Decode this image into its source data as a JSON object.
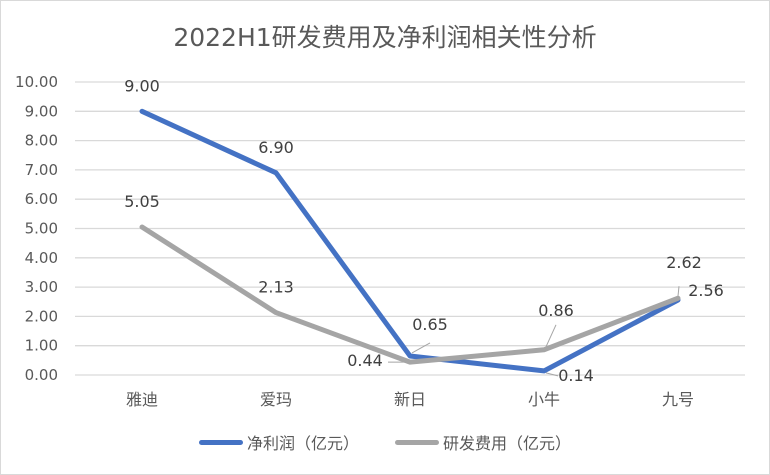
{
  "chart_data": {
    "type": "line",
    "title": "2022H1研发费用及净利润相关性分析",
    "categories": [
      "雅迪",
      "爱玛",
      "新日",
      "小牛",
      "九号"
    ],
    "series": [
      {
        "name": "净利润（亿元）",
        "values": [
          9.0,
          6.9,
          0.65,
          0.14,
          2.56
        ],
        "color": "#4472C4",
        "labels": [
          "9.00",
          "6.90",
          "0.65",
          "0.14",
          "2.56"
        ]
      },
      {
        "name": "研发费用（亿元）",
        "values": [
          5.05,
          2.13,
          0.44,
          0.86,
          2.62
        ],
        "color": "#A5A5A5",
        "labels": [
          "5.05",
          "2.13",
          "0.44",
          "0.86",
          "2.62"
        ]
      }
    ],
    "yticks": [
      "0.00",
      "1.00",
      "2.00",
      "3.00",
      "4.00",
      "5.00",
      "6.00",
      "7.00",
      "8.00",
      "9.00",
      "10.00"
    ],
    "ylim": [
      0,
      10
    ],
    "xlabel": "",
    "ylabel": "",
    "grid": true,
    "legend_position": "bottom"
  }
}
